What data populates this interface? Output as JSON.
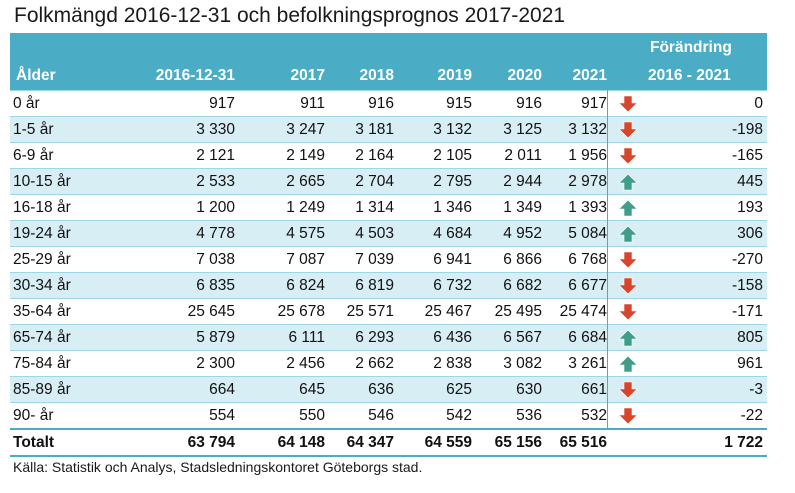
{
  "title": "Folkmängd 2016-12-31 och befolkningsprognos 2017-2021",
  "header": {
    "age": "Ålder",
    "cols": [
      "2016-12-31",
      "2017",
      "2018",
      "2019",
      "2020",
      "2021"
    ],
    "change_top": "Förändring",
    "change_bottom": "2016 - 2021"
  },
  "rows": [
    {
      "age": "0 år",
      "vals": [
        "917",
        "911",
        "916",
        "915",
        "916",
        "917"
      ],
      "trend": "down",
      "change": "0"
    },
    {
      "age": "1-5 år",
      "vals": [
        "3 330",
        "3 247",
        "3 181",
        "3 132",
        "3 125",
        "3 132"
      ],
      "trend": "down",
      "change": "-198"
    },
    {
      "age": "6-9 år",
      "vals": [
        "2 121",
        "2 149",
        "2 164",
        "2 105",
        "2 011",
        "1 956"
      ],
      "trend": "down",
      "change": "-165"
    },
    {
      "age": "10-15 år",
      "vals": [
        "2 533",
        "2 665",
        "2 704",
        "2 795",
        "2 944",
        "2 978"
      ],
      "trend": "up",
      "change": "445"
    },
    {
      "age": "16-18 år",
      "vals": [
        "1 200",
        "1 249",
        "1 314",
        "1 346",
        "1 349",
        "1 393"
      ],
      "trend": "up",
      "change": "193"
    },
    {
      "age": "19-24 år",
      "vals": [
        "4 778",
        "4 575",
        "4 503",
        "4 684",
        "4 952",
        "5 084"
      ],
      "trend": "up",
      "change": "306"
    },
    {
      "age": "25-29 år",
      "vals": [
        "7 038",
        "7 087",
        "7 039",
        "6 941",
        "6 866",
        "6 768"
      ],
      "trend": "down",
      "change": "-270"
    },
    {
      "age": "30-34 år",
      "vals": [
        "6 835",
        "6 824",
        "6 819",
        "6 732",
        "6 682",
        "6 677"
      ],
      "trend": "down",
      "change": "-158"
    },
    {
      "age": "35-64 år",
      "vals": [
        "25 645",
        "25 678",
        "25 571",
        "25 467",
        "25 495",
        "25 474"
      ],
      "trend": "down",
      "change": "-171"
    },
    {
      "age": "65-74 år",
      "vals": [
        "5 879",
        "6 111",
        "6 293",
        "6 436",
        "6 567",
        "6 684"
      ],
      "trend": "up",
      "change": "805"
    },
    {
      "age": "75-84 år",
      "vals": [
        "2 300",
        "2 456",
        "2 662",
        "2 838",
        "3 082",
        "3 261"
      ],
      "trend": "up",
      "change": "961"
    },
    {
      "age": "85-89 år",
      "vals": [
        "664",
        "645",
        "636",
        "625",
        "630",
        "661"
      ],
      "trend": "down",
      "change": "-3"
    },
    {
      "age": "90- år",
      "vals": [
        "554",
        "550",
        "546",
        "542",
        "536",
        "532"
      ],
      "trend": "down",
      "change": "-22"
    }
  ],
  "total": {
    "label": "Totalt",
    "vals": [
      "63 794",
      "64 148",
      "64 347",
      "64 559",
      "65 156",
      "65 516"
    ],
    "change": "1 722"
  },
  "source": "Källa:  Statistik och Analys, Stadsledningskontoret Göteborgs stad.",
  "colors": {
    "header_bg": "#4bacc6",
    "alt_row_bg": "#d8eef5",
    "arrow_up": "#3f9e8a",
    "arrow_down": "#d9452b"
  }
}
